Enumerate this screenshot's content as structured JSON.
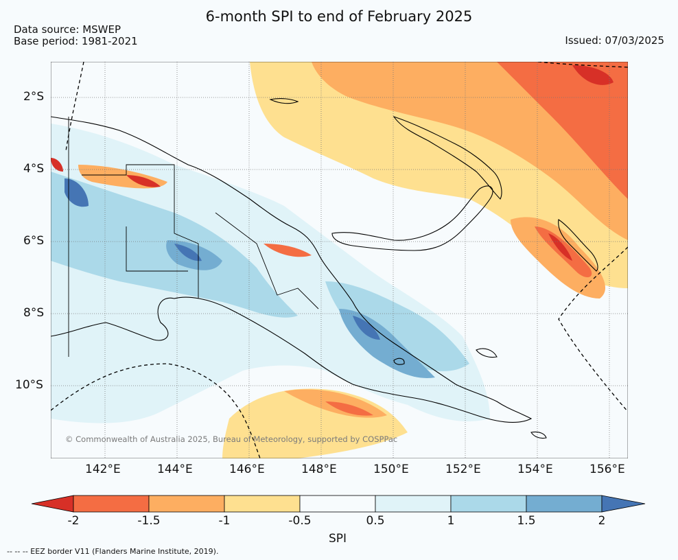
{
  "title": "6-month SPI to end of February 2025",
  "data_source": "Data source: MSWEP",
  "base_period": "Base period: 1981-2021",
  "issued": "Issued: 07/03/2025",
  "lat_labels": [
    "2°S",
    "4°S",
    "6°S",
    "8°S",
    "10°S"
  ],
  "lon_labels": [
    "142°E",
    "144°E",
    "146°E",
    "148°E",
    "150°E",
    "152°E",
    "154°E",
    "156°E"
  ],
  "colorbar": {
    "label": "SPI",
    "ticks": [
      "-2",
      "-1.5",
      "-1",
      "-0.5",
      "0.5",
      "1",
      "1.5",
      "2"
    ],
    "colors": [
      "#d73027",
      "#f46d43",
      "#fdae61",
      "#fee090",
      "#f7fbfd",
      "#e0f3f8",
      "#abd9e9",
      "#74add1",
      "#4575b4"
    ]
  },
  "credit": "© Commonwealth of Australia 2025, Bureau of Meteorology, supported by COSPPac",
  "eez_note": "-- -- -- EEZ border V11 (Flanders Marine Institute, 2019)."
}
